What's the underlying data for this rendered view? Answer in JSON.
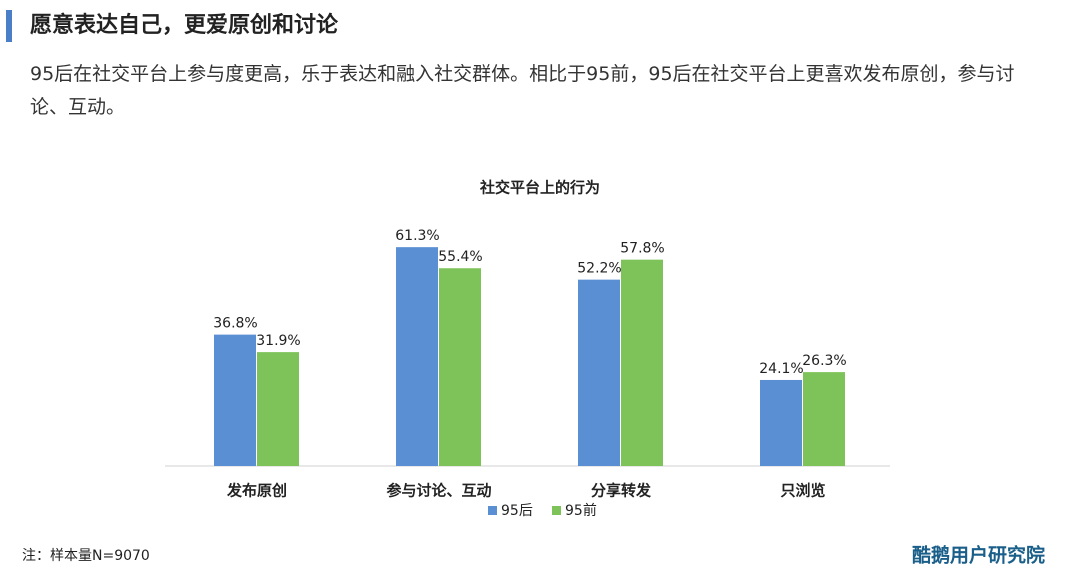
{
  "header": {
    "title": "愿意表达自己，更爱原创和讨论",
    "subtitle": "95后在社交平台上参与度更高，乐于表达和融入社交群体。相比于95前，95后在社交平台上更喜欢发布原创，参与讨论、互动。"
  },
  "chart_data": {
    "type": "bar",
    "title": "社交平台上的行为",
    "categories": [
      "发布原创",
      "参与讨论、互动",
      "分享转发",
      "只浏览"
    ],
    "series": [
      {
        "name": "95后",
        "color": "#5b8fd4",
        "values": [
          36.8,
          61.3,
          52.2,
          24.1
        ],
        "value_labels": [
          "36.8%",
          "61.3%",
          "52.2%",
          "24.1%"
        ]
      },
      {
        "name": "95前",
        "color": "#7ec35a",
        "values": [
          31.9,
          55.4,
          57.8,
          26.3
        ],
        "value_labels": [
          "31.9%",
          "55.4%",
          "57.8%",
          "26.3%"
        ]
      }
    ]
  },
  "note": "注：样本量N=9070",
  "logo": "酷鹅用户研究院"
}
